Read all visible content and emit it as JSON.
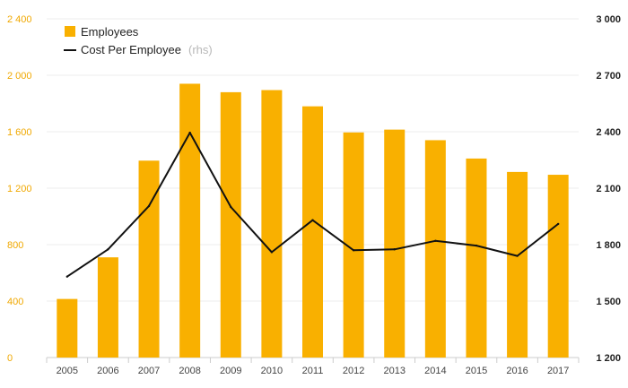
{
  "chart_data": {
    "type": "bar+line",
    "categories": [
      "2005",
      "2006",
      "2007",
      "2008",
      "2009",
      "2010",
      "2011",
      "2012",
      "2013",
      "2014",
      "2015",
      "2016",
      "2017"
    ],
    "series": [
      {
        "name": "Employees",
        "type": "bar",
        "axis": "left",
        "color": "#f9b000",
        "values": [
          415,
          710,
          1395,
          1940,
          1880,
          1895,
          1780,
          1595,
          1615,
          1540,
          1410,
          1315,
          1295
        ]
      },
      {
        "name": "Cost Per Employee",
        "note": "(rhs)",
        "type": "line",
        "axis": "right",
        "color": "#111111",
        "values": [
          1630,
          1775,
          2005,
          2395,
          2000,
          1760,
          1930,
          1770,
          1775,
          1820,
          1795,
          1740,
          1910
        ]
      }
    ],
    "y_left": {
      "min": 0,
      "max": 2400,
      "ticks": [
        0,
        400,
        800,
        1200,
        1600,
        2000,
        2400
      ],
      "tick_labels": [
        "0",
        "400",
        "800",
        "1 200",
        "1 600",
        "2 000",
        "2 400"
      ]
    },
    "y_right": {
      "min": 1200,
      "max": 3000,
      "ticks": [
        1200,
        1500,
        1800,
        2100,
        2400,
        2700,
        3000
      ],
      "tick_labels": [
        "1 200",
        "1 500",
        "1 800",
        "2 100",
        "2 400",
        "2 700",
        "3 000"
      ]
    },
    "grid": true,
    "legend_position": "top-left"
  },
  "legend": {
    "employees_label": "Employees",
    "cost_label": "Cost Per Employee",
    "cost_note": "(rhs)"
  }
}
